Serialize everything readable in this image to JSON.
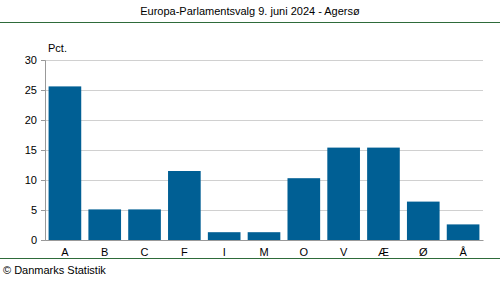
{
  "chart_data": {
    "type": "bar",
    "title": "Europa-Parlamentsvalg 9. juni 2024 - Agersø",
    "y_label": "Pct.",
    "source": "© Danmarks Statistik",
    "categories": [
      "A",
      "B",
      "C",
      "F",
      "I",
      "M",
      "O",
      "V",
      "Æ",
      "Ø",
      "Å"
    ],
    "values": [
      25.6,
      5.1,
      5.1,
      11.5,
      1.3,
      1.3,
      10.3,
      15.4,
      15.4,
      6.4,
      2.6
    ],
    "color": "#005f94",
    "ylim": [
      0,
      30
    ],
    "yticks": [
      0,
      5,
      10,
      15,
      20,
      25,
      30
    ],
    "grid": true
  }
}
